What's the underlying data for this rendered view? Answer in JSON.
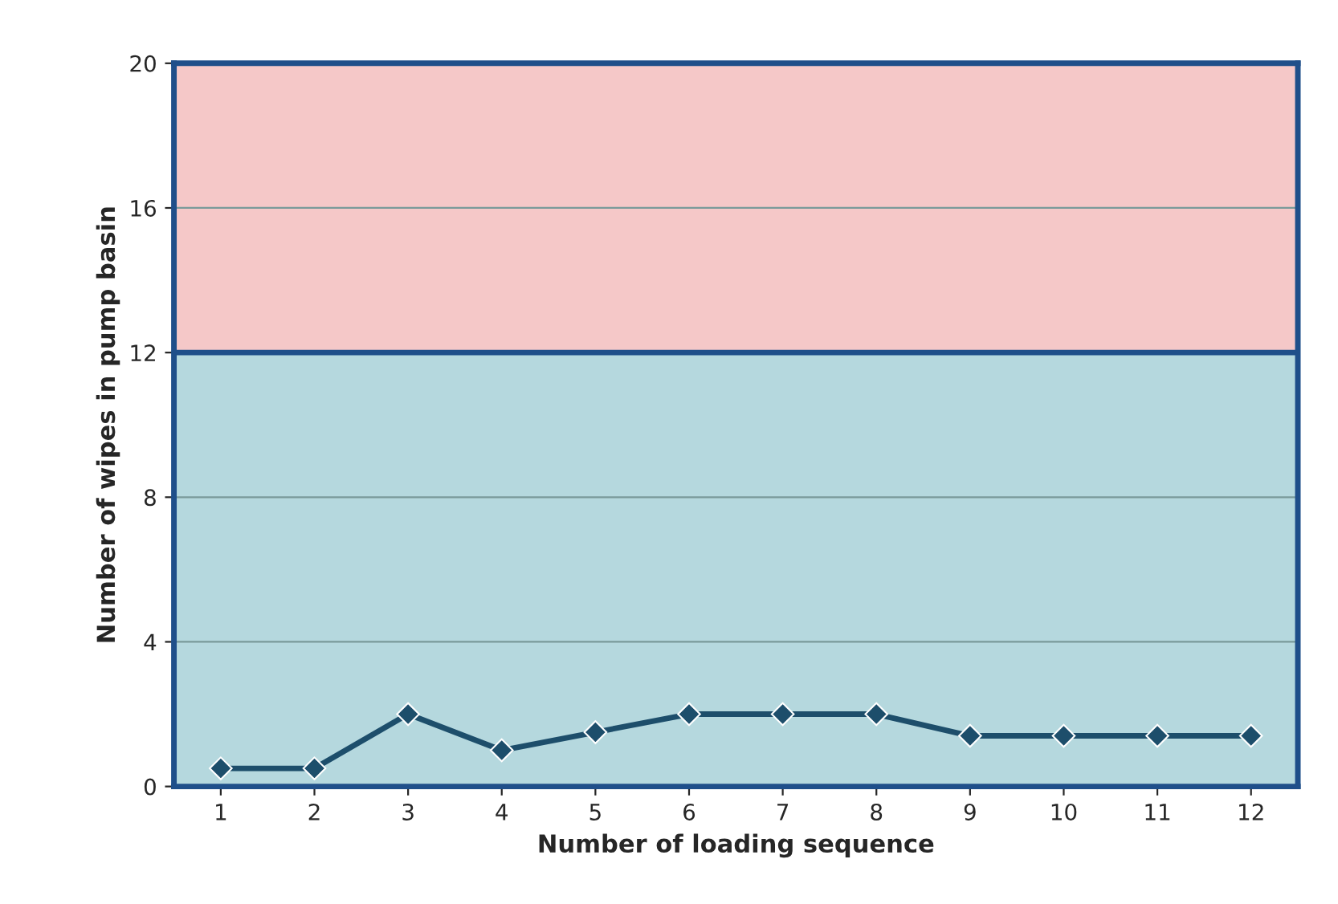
{
  "chart_data": {
    "type": "line",
    "xlabel": "Number of loading sequence",
    "ylabel": "Number of wipes in pump basin",
    "categories": [
      "1",
      "2",
      "3",
      "4",
      "5",
      "6",
      "7",
      "8",
      "9",
      "10",
      "11",
      "12"
    ],
    "series": [
      {
        "color": "#1d4e6b",
        "values": [
          0.5,
          0.5,
          2,
          1,
          1.5,
          2,
          2,
          2,
          1.4,
          1.4,
          1.4,
          1.4
        ]
      }
    ],
    "ylim": [
      0,
      20
    ],
    "yticks": [
      0,
      4,
      8,
      12,
      16,
      20
    ],
    "grid": "y",
    "marker": "diamond",
    "line_style": "solid",
    "legend": false,
    "bands": [
      {
        "axis": "y",
        "from": 0,
        "to": 12,
        "color": "#b5d8de"
      },
      {
        "axis": "y",
        "from": 12,
        "to": 20,
        "color": "#f5c8c8"
      }
    ],
    "ref_lines": [
      {
        "axis": "y",
        "value": 12,
        "color": "#1f4f8a"
      }
    ]
  }
}
